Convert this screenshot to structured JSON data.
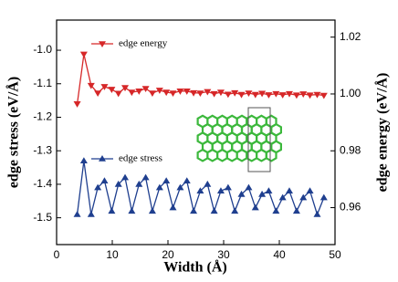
{
  "chart_data": {
    "type": "line",
    "xlabel": "Width (Å)",
    "ylabel": "edge stress (eV/Å)",
    "y2label": "edge energy (eV/Å)",
    "x": [
      3.7,
      4.9,
      6.2,
      7.4,
      8.6,
      9.9,
      11.1,
      12.3,
      13.5,
      14.8,
      16.0,
      17.2,
      18.5,
      19.7,
      20.9,
      22.2,
      23.4,
      24.6,
      25.8,
      27.1,
      28.3,
      29.5,
      30.8,
      32.0,
      33.2,
      34.5,
      35.7,
      36.9,
      38.1,
      39.4,
      40.6,
      41.8,
      43.1,
      44.3,
      45.5,
      46.8,
      48.0
    ],
    "series": [
      {
        "name": "edge energy",
        "color": "#d62728",
        "marker": "down",
        "axis": "y2",
        "values": [
          0.9965,
          1.014,
          1.003,
          1.0003,
          1.0026,
          1.0016,
          1.0002,
          1.0022,
          1.0006,
          1.001,
          1.0019,
          1.0003,
          1.0013,
          1.0006,
          1.0003,
          1.001,
          1.001,
          1.0004,
          1.0003,
          1.0008,
          1.0001,
          1.0006,
          0.9999,
          1.0004,
          0.9998,
          1.0003,
          0.9998,
          1.0002,
          0.9997,
          1.0001,
          0.9997,
          1.0001,
          0.9996,
          1.0,
          0.9996,
          0.9998,
          0.9995
        ]
      },
      {
        "name": "edge stress",
        "color": "#1f3f8f",
        "marker": "up",
        "values": [
          -1.49,
          -1.33,
          -1.49,
          -1.41,
          -1.39,
          -1.48,
          -1.4,
          -1.38,
          -1.48,
          -1.4,
          -1.38,
          -1.48,
          -1.41,
          -1.39,
          -1.47,
          -1.41,
          -1.39,
          -1.48,
          -1.42,
          -1.4,
          -1.48,
          -1.42,
          -1.41,
          -1.48,
          -1.43,
          -1.41,
          -1.47,
          -1.43,
          -1.42,
          -1.48,
          -1.44,
          -1.42,
          -1.48,
          -1.44,
          -1.42,
          -1.49,
          -1.44
        ]
      }
    ],
    "xlim": [
      0,
      50
    ],
    "xticks": [
      0,
      10,
      20,
      30,
      40,
      50
    ],
    "ylim": [
      -1.58,
      -0.91
    ],
    "yticks": [
      {
        "value": -1,
        "label": "-1.0"
      },
      -1.1,
      -1.2,
      -1.3,
      -1.4,
      -1.5
    ],
    "y2lim": [
      0.947,
      1.026
    ],
    "y2ticks": [
      {
        "value": 1.02,
        "label": "1.02"
      },
      {
        "value": 1,
        "label": "1.00"
      },
      0.98,
      0.96
    ]
  }
}
